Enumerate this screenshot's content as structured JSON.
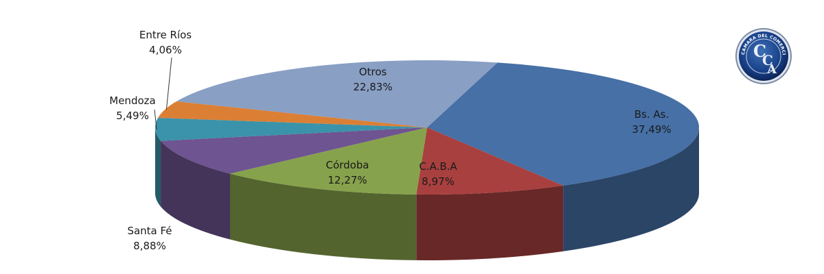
{
  "chart_data": {
    "type": "pie",
    "variant": "3d-exploded-none",
    "slices": [
      {
        "label": "Bs. As.",
        "value": 37.49,
        "value_text": "37,49%",
        "color": "#4670a6"
      },
      {
        "label": "C.A.B.A",
        "value": 8.97,
        "value_text": "8,97%",
        "color": "#a8403f"
      },
      {
        "label": "Córdoba",
        "value": 12.27,
        "value_text": "12,27%",
        "color": "#87a24c"
      },
      {
        "label": "Santa Fé",
        "value": 8.88,
        "value_text": "8,88%",
        "color": "#6e5490"
      },
      {
        "label": "Mendoza",
        "value": 5.49,
        "value_text": "5,49%",
        "color": "#3a93aa"
      },
      {
        "label": "Entre Ríos",
        "value": 4.06,
        "value_text": "4,06%",
        "color": "#db7f35"
      },
      {
        "label": "Otros",
        "value": 22.83,
        "value_text": "22,83%",
        "color": "#899fc4"
      }
    ]
  },
  "logo": {
    "ring_text": "CAMARA DEL COMERCIO AUTOMOTOR",
    "monogram": "CCA"
  }
}
